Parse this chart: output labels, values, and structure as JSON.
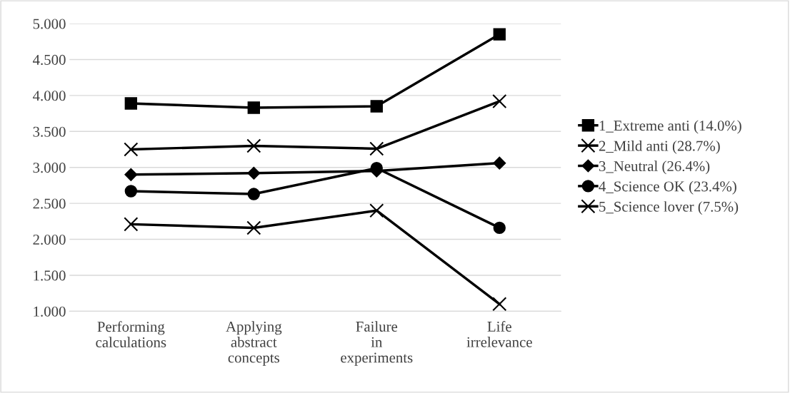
{
  "chart_data": {
    "type": "line",
    "categories": [
      "Performing calculations",
      "Applying abstract concepts",
      "Failure in experiments",
      "Life irrelevance"
    ],
    "series": [
      {
        "name": "1_Extreme anti (14.0%)",
        "color": "#000000",
        "marker": "square",
        "values": [
          3.89,
          3.83,
          3.85,
          4.85
        ]
      },
      {
        "name": "2_Mild anti (28.7%)",
        "color": "#000000",
        "marker": "cross",
        "values": [
          3.25,
          3.3,
          3.26,
          3.92
        ]
      },
      {
        "name": "3_Neutral (26.4%)",
        "color": "#000000",
        "marker": "diamond",
        "values": [
          2.9,
          2.92,
          2.95,
          3.06
        ]
      },
      {
        "name": "4_Science OK (23.4%)",
        "color": "#000000",
        "marker": "circle",
        "values": [
          2.67,
          2.63,
          2.99,
          2.16
        ]
      },
      {
        "name": "5_Science lover (7.5%)",
        "color": "#000000",
        "marker": "cross",
        "values": [
          2.21,
          2.16,
          2.4,
          1.1
        ]
      }
    ],
    "ylim": [
      1,
      5
    ],
    "yticks": [
      {
        "value": 1,
        "label": "1.000"
      },
      {
        "value": 1.5,
        "label": "1.500"
      },
      {
        "value": 2,
        "label": "2.000"
      },
      {
        "value": 2.5,
        "label": "2.500"
      },
      {
        "value": 3,
        "label": "3.000"
      },
      {
        "value": 3.5,
        "label": "3.500"
      },
      {
        "value": 4,
        "label": "4.000"
      },
      {
        "value": 4.5,
        "label": "4.500"
      },
      {
        "value": 5,
        "label": "5.000"
      }
    ],
    "grid": "y",
    "legend": "right",
    "line_style": "solid"
  }
}
